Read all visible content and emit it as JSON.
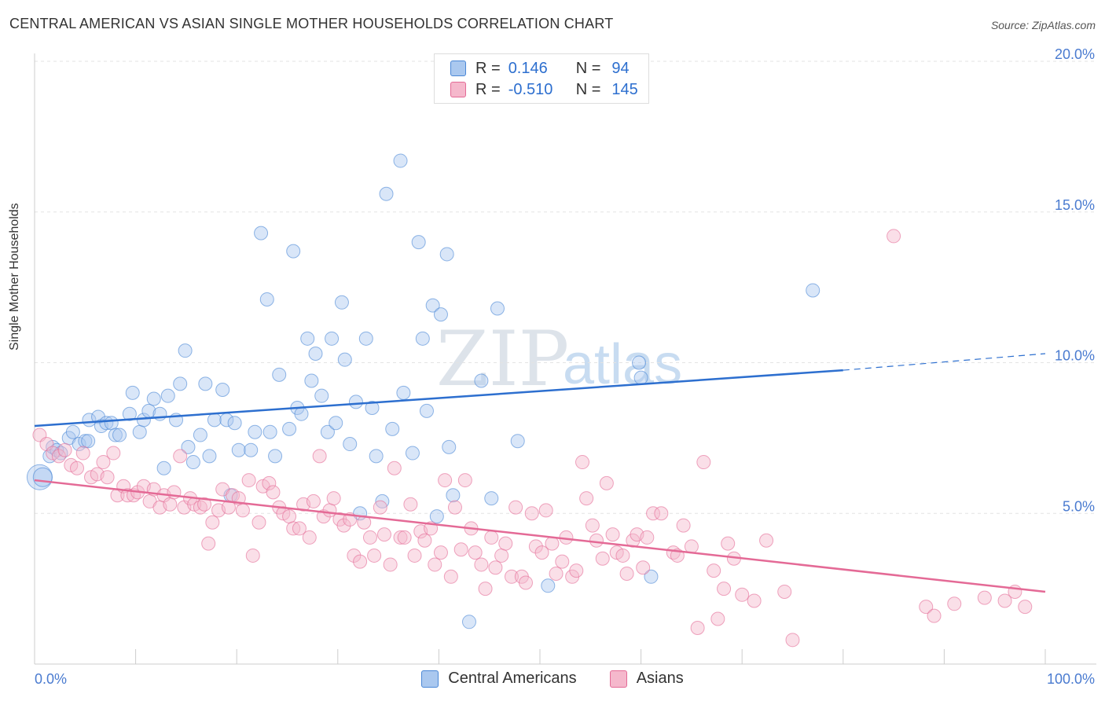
{
  "title": "CENTRAL AMERICAN VS ASIAN SINGLE MOTHER HOUSEHOLDS CORRELATION CHART",
  "source": "Source: ZipAtlas.com",
  "watermark": {
    "zip": "ZIP",
    "atlas": "atlas"
  },
  "legend": [
    {
      "r_label": "R =",
      "r_value": "0.146",
      "n_label": "N =",
      "n_value": "94",
      "color": "#aac8ef"
    },
    {
      "r_label": "R =",
      "r_value": "-0.510",
      "n_label": "N =",
      "n_value": "145",
      "color": "#f5b8cc"
    }
  ],
  "bottom_legend": [
    "Central Americans",
    "Asians"
  ],
  "chart_data": {
    "type": "scatter",
    "xlabel": "",
    "ylabel": "Single Mother Households",
    "xlim": [
      0,
      100
    ],
    "ylim": [
      0,
      20
    ],
    "x_tick_labels": [
      "0.0%",
      "100.0%"
    ],
    "y_ticks": [
      5,
      10,
      15,
      20
    ],
    "y_tick_labels": [
      "5.0%",
      "10.0%",
      "15.0%",
      "20.0%"
    ],
    "grid": true,
    "colors": {
      "central": "#4a87d6",
      "central_fill": "#aac8ef",
      "asian": "#e46a96",
      "asian_fill": "#f5b8cc"
    },
    "series": [
      {
        "name": "Central Americans",
        "trend": {
          "x0": 0,
          "y0": 7.9,
          "x1": 80,
          "y1": 9.75,
          "dash_to_x": 100,
          "dash_y": 10.3
        },
        "points": [
          [
            0.5,
            6.2
          ],
          [
            0.8,
            6.2
          ],
          [
            1.5,
            6.9
          ],
          [
            1.8,
            7.2
          ],
          [
            2.2,
            7.1
          ],
          [
            2.6,
            7.0
          ],
          [
            3.4,
            7.5
          ],
          [
            3.8,
            7.7
          ],
          [
            4.4,
            7.3
          ],
          [
            5.0,
            7.4
          ],
          [
            5.3,
            7.4
          ],
          [
            5.4,
            8.1
          ],
          [
            6.3,
            8.2
          ],
          [
            6.6,
            7.9
          ],
          [
            7.1,
            8.0
          ],
          [
            7.6,
            8.0
          ],
          [
            8.0,
            7.6
          ],
          [
            8.4,
            7.6
          ],
          [
            9.4,
            8.3
          ],
          [
            9.7,
            9.0
          ],
          [
            10.4,
            7.7
          ],
          [
            10.8,
            8.1
          ],
          [
            11.3,
            8.4
          ],
          [
            11.8,
            8.8
          ],
          [
            12.4,
            8.3
          ],
          [
            12.8,
            6.5
          ],
          [
            13.2,
            8.9
          ],
          [
            14.0,
            8.1
          ],
          [
            14.4,
            9.3
          ],
          [
            14.9,
            10.4
          ],
          [
            15.2,
            7.2
          ],
          [
            15.7,
            6.7
          ],
          [
            16.4,
            7.6
          ],
          [
            16.9,
            9.3
          ],
          [
            17.3,
            6.9
          ],
          [
            17.8,
            8.1
          ],
          [
            18.6,
            9.1
          ],
          [
            19.0,
            8.1
          ],
          [
            19.4,
            5.6
          ],
          [
            19.8,
            8.0
          ],
          [
            20.2,
            7.1
          ],
          [
            21.4,
            7.1
          ],
          [
            21.8,
            7.7
          ],
          [
            22.4,
            14.3
          ],
          [
            23.0,
            12.1
          ],
          [
            23.3,
            7.7
          ],
          [
            23.8,
            6.9
          ],
          [
            24.2,
            9.6
          ],
          [
            25.2,
            7.8
          ],
          [
            25.6,
            13.7
          ],
          [
            26.0,
            8.5
          ],
          [
            26.4,
            8.3
          ],
          [
            27.0,
            10.8
          ],
          [
            27.4,
            9.4
          ],
          [
            27.8,
            10.3
          ],
          [
            28.4,
            8.9
          ],
          [
            29.0,
            7.7
          ],
          [
            29.4,
            10.8
          ],
          [
            29.8,
            8.0
          ],
          [
            30.4,
            12.0
          ],
          [
            30.7,
            10.1
          ],
          [
            31.2,
            7.3
          ],
          [
            31.8,
            8.7
          ],
          [
            32.2,
            5.0
          ],
          [
            32.8,
            10.8
          ],
          [
            33.4,
            8.5
          ],
          [
            33.8,
            6.9
          ],
          [
            34.4,
            5.4
          ],
          [
            34.8,
            15.6
          ],
          [
            35.4,
            7.8
          ],
          [
            36.2,
            16.7
          ],
          [
            36.5,
            9.0
          ],
          [
            37.4,
            7.0
          ],
          [
            38.0,
            14.0
          ],
          [
            38.4,
            10.8
          ],
          [
            38.8,
            8.4
          ],
          [
            39.4,
            11.9
          ],
          [
            39.8,
            4.9
          ],
          [
            40.2,
            11.6
          ],
          [
            40.8,
            13.6
          ],
          [
            41.0,
            7.2
          ],
          [
            41.4,
            5.6
          ],
          [
            43.0,
            1.4
          ],
          [
            44.2,
            9.4
          ],
          [
            45.2,
            5.5
          ],
          [
            45.8,
            11.8
          ],
          [
            47.8,
            7.4
          ],
          [
            50.8,
            2.6
          ],
          [
            59.8,
            10.0
          ],
          [
            60.0,
            9.5
          ],
          [
            61.0,
            2.9
          ],
          [
            77.0,
            12.4
          ]
        ]
      },
      {
        "name": "Asians",
        "trend": {
          "x0": 0,
          "y0": 6.1,
          "x1": 100,
          "y1": 2.4
        },
        "points": [
          [
            0.5,
            7.6
          ],
          [
            1.2,
            7.3
          ],
          [
            1.8,
            7.0
          ],
          [
            2.4,
            6.9
          ],
          [
            3.0,
            7.1
          ],
          [
            3.6,
            6.6
          ],
          [
            4.2,
            6.5
          ],
          [
            4.8,
            7.0
          ],
          [
            5.6,
            6.2
          ],
          [
            6.2,
            6.3
          ],
          [
            6.8,
            6.7
          ],
          [
            7.2,
            6.2
          ],
          [
            7.8,
            7.0
          ],
          [
            8.2,
            5.6
          ],
          [
            8.8,
            5.9
          ],
          [
            9.2,
            5.6
          ],
          [
            9.8,
            5.6
          ],
          [
            10.2,
            5.7
          ],
          [
            10.8,
            5.9
          ],
          [
            11.4,
            5.4
          ],
          [
            11.8,
            5.8
          ],
          [
            12.4,
            5.2
          ],
          [
            12.8,
            5.6
          ],
          [
            13.4,
            5.3
          ],
          [
            13.8,
            5.7
          ],
          [
            14.4,
            6.9
          ],
          [
            14.8,
            5.2
          ],
          [
            15.4,
            5.5
          ],
          [
            15.8,
            5.3
          ],
          [
            16.4,
            5.2
          ],
          [
            16.8,
            5.3
          ],
          [
            17.2,
            4.0
          ],
          [
            17.6,
            4.7
          ],
          [
            18.2,
            5.1
          ],
          [
            18.6,
            5.8
          ],
          [
            19.2,
            5.2
          ],
          [
            19.6,
            5.6
          ],
          [
            20.2,
            5.5
          ],
          [
            20.6,
            5.1
          ],
          [
            21.2,
            6.1
          ],
          [
            21.6,
            3.6
          ],
          [
            22.2,
            4.7
          ],
          [
            22.6,
            5.9
          ],
          [
            23.2,
            6.0
          ],
          [
            23.6,
            5.7
          ],
          [
            24.2,
            5.2
          ],
          [
            24.6,
            5.0
          ],
          [
            25.2,
            4.9
          ],
          [
            25.6,
            4.5
          ],
          [
            26.2,
            4.5
          ],
          [
            26.6,
            5.3
          ],
          [
            27.2,
            4.2
          ],
          [
            27.6,
            5.4
          ],
          [
            28.2,
            6.9
          ],
          [
            28.6,
            4.9
          ],
          [
            29.2,
            5.1
          ],
          [
            29.6,
            5.5
          ],
          [
            30.2,
            4.8
          ],
          [
            30.6,
            4.6
          ],
          [
            31.2,
            4.8
          ],
          [
            31.6,
            3.6
          ],
          [
            32.2,
            3.4
          ],
          [
            32.6,
            4.7
          ],
          [
            33.2,
            4.2
          ],
          [
            33.6,
            3.6
          ],
          [
            34.2,
            5.2
          ],
          [
            34.6,
            4.3
          ],
          [
            35.2,
            3.3
          ],
          [
            35.6,
            6.5
          ],
          [
            36.2,
            4.2
          ],
          [
            36.6,
            4.2
          ],
          [
            37.2,
            5.3
          ],
          [
            37.6,
            3.6
          ],
          [
            38.2,
            4.4
          ],
          [
            38.6,
            4.1
          ],
          [
            39.2,
            4.5
          ],
          [
            39.6,
            3.3
          ],
          [
            40.2,
            3.7
          ],
          [
            40.6,
            6.1
          ],
          [
            41.2,
            2.9
          ],
          [
            41.6,
            5.2
          ],
          [
            42.2,
            3.8
          ],
          [
            42.6,
            6.1
          ],
          [
            43.2,
            4.5
          ],
          [
            43.6,
            3.7
          ],
          [
            44.2,
            3.3
          ],
          [
            44.6,
            2.5
          ],
          [
            45.2,
            4.2
          ],
          [
            45.6,
            3.2
          ],
          [
            46.2,
            3.6
          ],
          [
            46.6,
            4.0
          ],
          [
            47.2,
            2.9
          ],
          [
            47.6,
            5.2
          ],
          [
            48.2,
            2.9
          ],
          [
            48.6,
            2.7
          ],
          [
            49.2,
            5.0
          ],
          [
            49.6,
            3.9
          ],
          [
            50.2,
            3.7
          ],
          [
            50.6,
            5.1
          ],
          [
            51.2,
            4.0
          ],
          [
            51.6,
            3.0
          ],
          [
            52.2,
            3.4
          ],
          [
            52.6,
            4.2
          ],
          [
            53.2,
            2.9
          ],
          [
            53.6,
            3.1
          ],
          [
            54.2,
            6.7
          ],
          [
            54.6,
            5.5
          ],
          [
            55.2,
            4.6
          ],
          [
            55.6,
            4.1
          ],
          [
            56.2,
            3.5
          ],
          [
            56.6,
            6.0
          ],
          [
            57.2,
            4.3
          ],
          [
            57.6,
            3.7
          ],
          [
            58.2,
            3.6
          ],
          [
            58.6,
            3.0
          ],
          [
            59.2,
            4.1
          ],
          [
            59.6,
            4.3
          ],
          [
            60.2,
            3.2
          ],
          [
            60.6,
            4.2
          ],
          [
            61.2,
            5.0
          ],
          [
            62.0,
            5.0
          ],
          [
            63.2,
            3.7
          ],
          [
            63.6,
            3.6
          ],
          [
            64.2,
            4.6
          ],
          [
            65.0,
            3.9
          ],
          [
            65.6,
            1.2
          ],
          [
            66.2,
            6.7
          ],
          [
            67.2,
            3.1
          ],
          [
            67.6,
            1.5
          ],
          [
            68.2,
            2.5
          ],
          [
            68.6,
            4.0
          ],
          [
            69.2,
            3.5
          ],
          [
            70.0,
            2.3
          ],
          [
            71.2,
            2.1
          ],
          [
            72.4,
            4.1
          ],
          [
            74.2,
            2.4
          ],
          [
            75.0,
            0.8
          ],
          [
            85.0,
            14.2
          ],
          [
            88.2,
            1.9
          ],
          [
            89.0,
            1.6
          ],
          [
            91.0,
            2.0
          ],
          [
            94.0,
            2.2
          ],
          [
            96.0,
            2.1
          ],
          [
            97.0,
            2.4
          ],
          [
            98.0,
            1.9
          ]
        ]
      }
    ]
  }
}
